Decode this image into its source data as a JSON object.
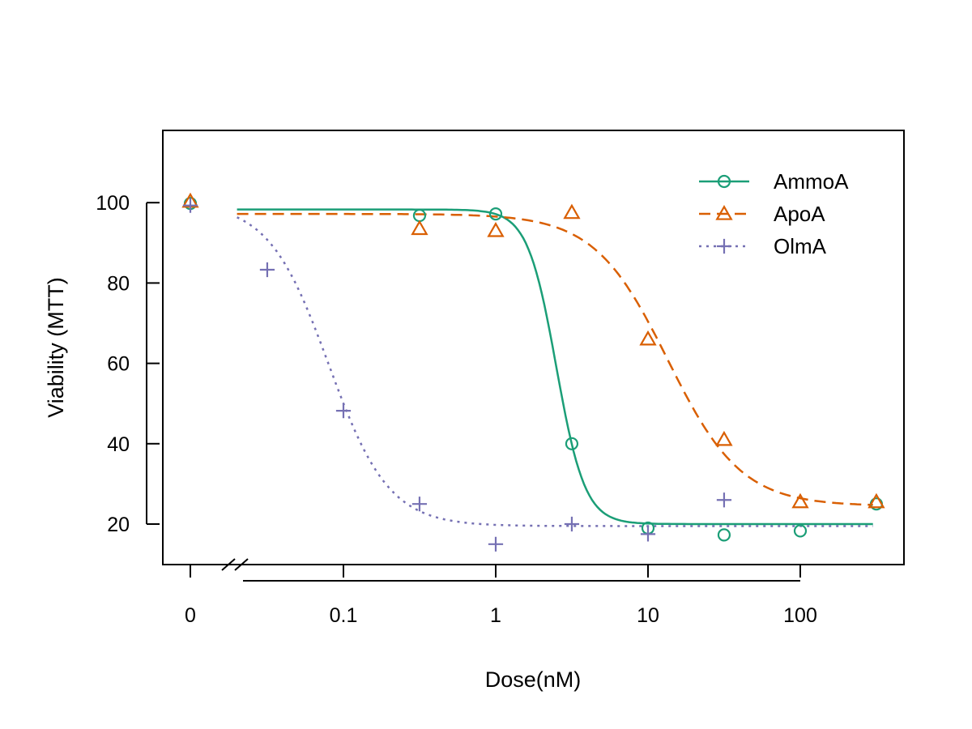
{
  "chart_data": {
    "type": "line",
    "title": "",
    "xlabel": "Dose(nM)",
    "ylabel": "Viability (MTT)",
    "x_scale": "log10 with zero-dose break",
    "xlim": [
      0,
      300
    ],
    "ylim": [
      10,
      115
    ],
    "x_ticks": [
      {
        "value": 0,
        "label": "0"
      },
      {
        "value": 0.1,
        "label": "0.1"
      },
      {
        "value": 1,
        "label": "1"
      },
      {
        "value": 10,
        "label": "10"
      },
      {
        "value": 100,
        "label": "100"
      }
    ],
    "y_ticks": [
      {
        "value": 20,
        "label": "20"
      },
      {
        "value": 40,
        "label": "40"
      },
      {
        "value": 60,
        "label": "60"
      },
      {
        "value": 80,
        "label": "80"
      },
      {
        "value": 100,
        "label": "100"
      }
    ],
    "legend_position": "top-right",
    "grid": false,
    "series": [
      {
        "name": "AmmoA",
        "color": "#1b9e77",
        "marker": "circle",
        "line": "solid",
        "points": [
          [
            0,
            99.8
          ],
          [
            0.316,
            96.8
          ],
          [
            1,
            97.2
          ],
          [
            3.16,
            40
          ],
          [
            10,
            19
          ],
          [
            31.6,
            17.3
          ],
          [
            100,
            18.3
          ],
          [
            316,
            25
          ]
        ],
        "fit": {
          "top": 98.3,
          "bottom": 20,
          "ec50": 2.5,
          "hill": 4.6,
          "x_from": 0.02,
          "x_to": 300
        }
      },
      {
        "name": "ApoA",
        "color": "#d95f02",
        "marker": "triangle",
        "line": "dashed",
        "points": [
          [
            0,
            100.3
          ],
          [
            0.316,
            93.5
          ],
          [
            1,
            93
          ],
          [
            3.16,
            97.5
          ],
          [
            10,
            66
          ],
          [
            31.6,
            41
          ],
          [
            100,
            25.5
          ],
          [
            316,
            25.5
          ]
        ],
        "fit": {
          "top": 97.2,
          "bottom": 24.5,
          "ec50": 13.5,
          "hill": 1.8,
          "x_from": 0.02,
          "x_to": 300
        }
      },
      {
        "name": "OlmA",
        "color": "#7570b3",
        "marker": "plus",
        "line": "dotted",
        "points": [
          [
            0,
            99.3
          ],
          [
            0.0316,
            83.3
          ],
          [
            0.1,
            48.2
          ],
          [
            0.316,
            25
          ],
          [
            1,
            15
          ],
          [
            3.16,
            20
          ],
          [
            10,
            17.5
          ],
          [
            31.6,
            26
          ]
        ],
        "fit": {
          "top": 100,
          "bottom": 19.5,
          "ec50": 0.08,
          "hill": 2.2,
          "x_from": 0.02,
          "x_to": 300
        }
      }
    ]
  }
}
